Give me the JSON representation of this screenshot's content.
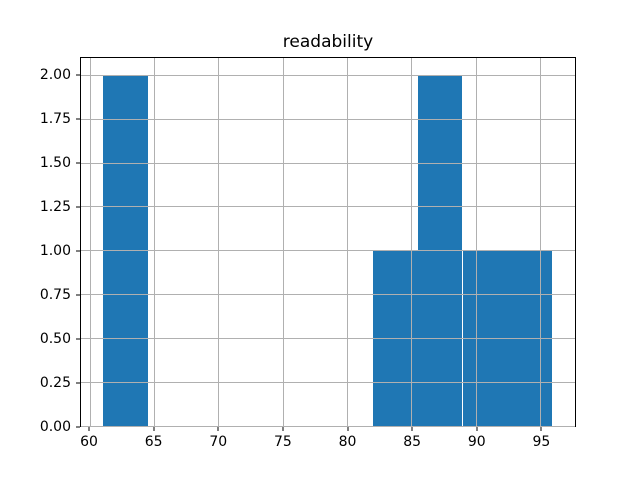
{
  "figure": {
    "title": "readability"
  },
  "chart_data": {
    "type": "bar",
    "subtype": "histogram",
    "title": "readability",
    "xlabel": "",
    "ylabel": "",
    "bin_edges": [
      61.0,
      64.49,
      67.99,
      71.48,
      74.97,
      78.46,
      81.96,
      85.45,
      88.94,
      92.44,
      95.93
    ],
    "counts": [
      2,
      0,
      0,
      0,
      0,
      0,
      1,
      2,
      1,
      1
    ],
    "x_ticks": [
      60,
      65,
      70,
      75,
      80,
      85,
      90,
      95
    ],
    "x_tick_labels": [
      "60",
      "65",
      "70",
      "75",
      "80",
      "85",
      "90",
      "95"
    ],
    "y_ticks": [
      0,
      0.25,
      0.5,
      0.75,
      1.0,
      1.25,
      1.5,
      1.75,
      2.0
    ],
    "y_tick_labels": [
      "0.00",
      "0.25",
      "0.50",
      "0.75",
      "1.00",
      "1.25",
      "1.50",
      "1.75",
      "2.00"
    ],
    "xlim": [
      59.3,
      97.68
    ],
    "ylim": [
      0,
      2.1
    ],
    "grid": true,
    "legend_position": "none",
    "bar_color": "#1f77b4",
    "grid_color": "#b0b0b0",
    "axes_color": "#000000",
    "background_color": "#ffffff"
  }
}
